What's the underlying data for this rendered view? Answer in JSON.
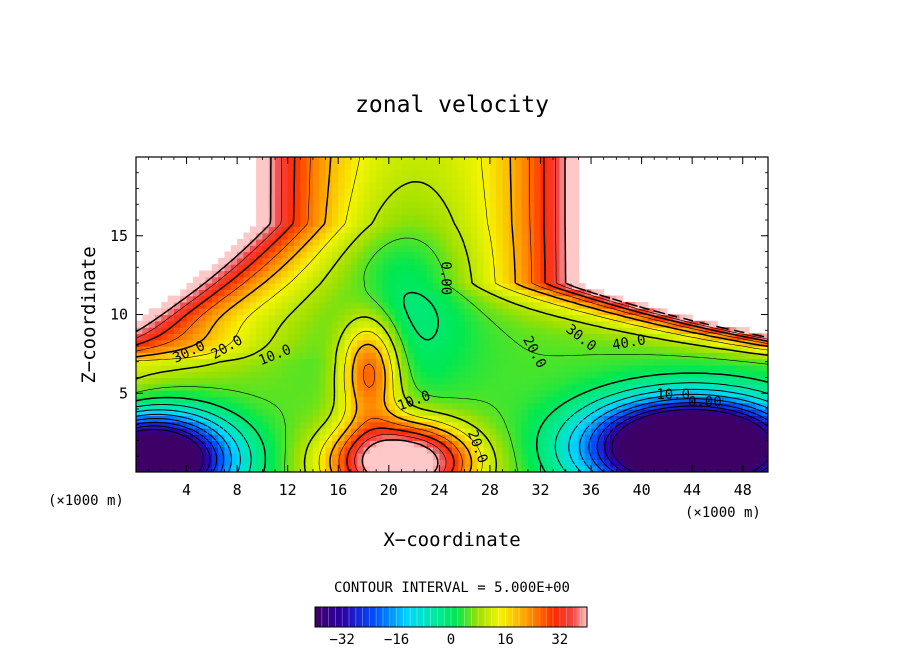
{
  "chart_data": {
    "type": "heatmap",
    "title": "zonal velocity",
    "xlabel": "X−coordinate",
    "ylabel": "Z−coordinate",
    "x_unit_left": "(×1000 m)",
    "x_unit_right": "(×1000 m)",
    "xlim": [
      0,
      50
    ],
    "ylim": [
      0,
      20
    ],
    "x_ticks": [
      4,
      8,
      12,
      16,
      20,
      24,
      28,
      32,
      36,
      40,
      44,
      48
    ],
    "x_tick_labels": [
      "4",
      "8",
      "12",
      "16",
      "20",
      "24",
      "28",
      "32",
      "36",
      "40",
      "44",
      "48"
    ],
    "y_ticks": [
      5,
      10,
      15
    ],
    "y_tick_labels": [
      "5",
      "10",
      "15"
    ],
    "contour_interval_text": "CONTOUR INTERVAL = 5.000E+00",
    "contour_labels": [
      {
        "text": "30.0",
        "x": 4.2,
        "z": 7.6,
        "angle": -25
      },
      {
        "text": "20.0",
        "x": 7.2,
        "z": 7.9,
        "angle": -30
      },
      {
        "text": "10.0",
        "x": 11.0,
        "z": 7.4,
        "angle": -22
      },
      {
        "text": "0.00",
        "x": 24.5,
        "z": 12.3,
        "angle": 90
      },
      {
        "text": "10.0",
        "x": 22.0,
        "z": 4.5,
        "angle": -20
      },
      {
        "text": "20.0",
        "x": 31.5,
        "z": 7.6,
        "angle": 62
      },
      {
        "text": "30.0",
        "x": 35.2,
        "z": 8.5,
        "angle": 38
      },
      {
        "text": "40.0",
        "x": 39.0,
        "z": 8.2,
        "angle": -10
      },
      {
        "text": "10.0",
        "x": 42.5,
        "z": 4.9,
        "angle": 0
      },
      {
        "text": "0.00",
        "x": 45.0,
        "z": 4.4,
        "angle": 0
      },
      {
        "text": "20.0",
        "x": 27.0,
        "z": 1.6,
        "angle": 70
      }
    ],
    "colorbar": {
      "range": [
        -40,
        40
      ],
      "ticks": [
        -32,
        -16,
        0,
        16,
        32
      ],
      "tick_labels": [
        "−32",
        "−16",
        "0",
        "16",
        "32"
      ]
    }
  }
}
